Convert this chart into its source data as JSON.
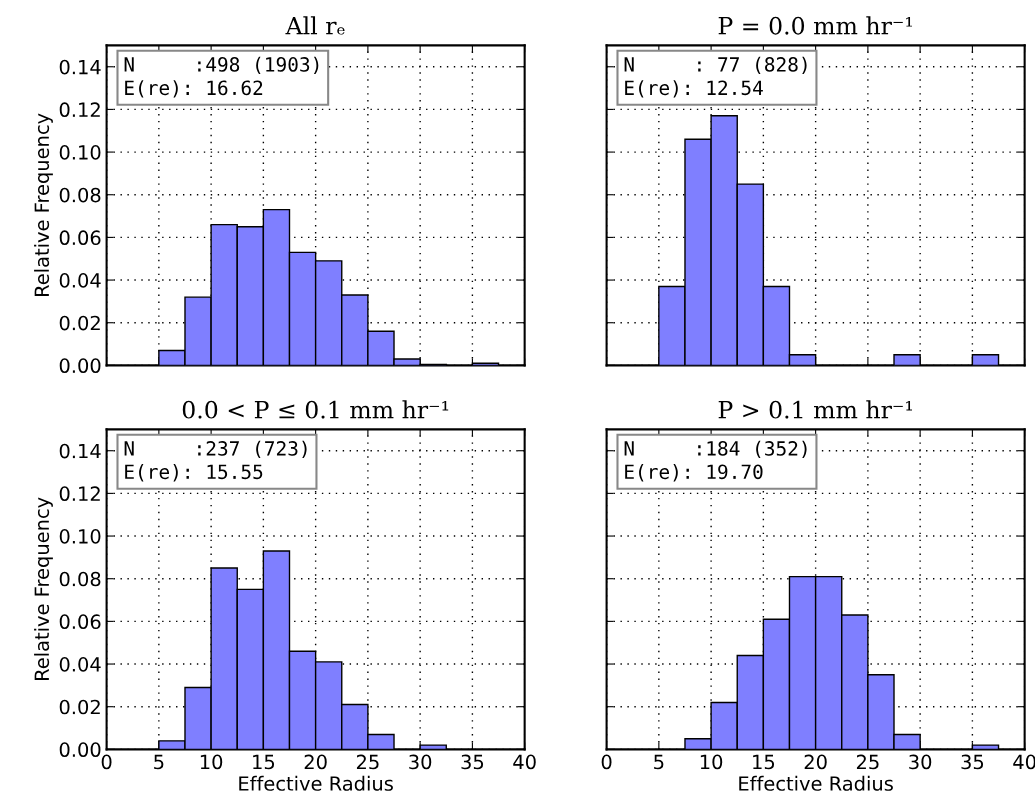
{
  "chart_data": [
    {
      "type": "histogram",
      "title": "All rₑ",
      "ylabel": "Relative Frequency",
      "annotations": [
        "N     :498 (1903)\nE(re): 16.62"
      ],
      "bins": [
        5,
        7.5,
        10,
        12.5,
        15,
        17.5,
        20,
        22.5,
        25,
        27.5,
        30,
        32.5,
        35,
        37.5
      ],
      "values": [
        0.007,
        0.032,
        0.066,
        0.065,
        0.073,
        0.053,
        0.049,
        0.033,
        0.016,
        0.003,
        0.0005,
        0,
        0.001
      ],
      "color": "#7f7fff",
      "xlim": [
        0,
        40
      ],
      "ylim": [
        0,
        0.15
      ],
      "xticks": [
        0,
        5,
        10,
        15,
        20,
        25,
        30,
        35,
        40
      ],
      "yticks": [
        {
          "value": 0,
          "label": "0.00"
        },
        {
          "value": 0.02,
          "label": "0.02"
        },
        {
          "value": 0.04,
          "label": "0.04"
        },
        {
          "value": 0.06,
          "label": "0.06"
        },
        {
          "value": 0.08,
          "label": "0.08"
        },
        {
          "value": 0.1,
          "label": "0.10"
        },
        {
          "value": 0.12,
          "label": "0.12"
        },
        {
          "value": 0.14,
          "label": "0.14"
        }
      ],
      "grid": true,
      "tick_labels": "y"
    },
    {
      "type": "histogram",
      "title": "P = 0.0 mm hr⁻¹",
      "annotations": [
        "N     : 77 (828)\nE(re): 12.54"
      ],
      "bins": [
        5,
        7.5,
        10,
        12.5,
        15,
        17.5,
        20,
        22.5,
        25,
        27.5,
        30,
        32.5,
        35,
        37.5
      ],
      "values": [
        0.037,
        0.106,
        0.117,
        0.085,
        0.037,
        0.005,
        0,
        0,
        0,
        0.005,
        0,
        0,
        0.005
      ],
      "color": "#7f7fff",
      "xlim": [
        0,
        40
      ],
      "ylim": [
        0,
        0.15
      ],
      "xticks": [
        0,
        5,
        10,
        15,
        20,
        25,
        30,
        35,
        40
      ],
      "yticks": [
        0,
        0.02,
        0.04,
        0.06,
        0.08,
        0.1,
        0.12,
        0.14
      ],
      "grid": true,
      "tick_labels": false
    },
    {
      "type": "histogram",
      "title": "0.0 < P ≤ 0.1 mm hr⁻¹",
      "xlabel": "Effective Radius",
      "ylabel": "Relative Frequency",
      "annotations": [
        "N     :237 (723)\nE(re): 15.55"
      ],
      "bins": [
        5,
        7.5,
        10,
        12.5,
        15,
        17.5,
        20,
        22.5,
        25,
        27.5,
        30,
        32.5,
        35,
        37.5
      ],
      "values": [
        0.004,
        0.029,
        0.085,
        0.075,
        0.093,
        0.046,
        0.041,
        0.021,
        0.007,
        0,
        0.002,
        0,
        0
      ],
      "color": "#7f7fff",
      "xlim": [
        0,
        40
      ],
      "ylim": [
        0,
        0.15
      ],
      "xticks": [
        0,
        5,
        10,
        15,
        20,
        25,
        30,
        35,
        40
      ],
      "yticks": [
        {
          "value": 0,
          "label": "0.00"
        },
        {
          "value": 0.02,
          "label": "0.02"
        },
        {
          "value": 0.04,
          "label": "0.04"
        },
        {
          "value": 0.06,
          "label": "0.06"
        },
        {
          "value": 0.08,
          "label": "0.08"
        },
        {
          "value": 0.1,
          "label": "0.10"
        },
        {
          "value": 0.12,
          "label": "0.12"
        },
        {
          "value": 0.14,
          "label": "0.14"
        }
      ],
      "grid": true
    },
    {
      "type": "histogram",
      "title": "P > 0.1 mm hr⁻¹",
      "xlabel": "Effective Radius",
      "annotations": [
        "N     :184 (352)\nE(re): 19.70"
      ],
      "bins": [
        5,
        7.5,
        10,
        12.5,
        15,
        17.5,
        20,
        22.5,
        25,
        27.5,
        30,
        32.5,
        35,
        37.5
      ],
      "values": [
        0,
        0.005,
        0.022,
        0.044,
        0.061,
        0.081,
        0.081,
        0.063,
        0.035,
        0.007,
        0,
        0,
        0.002
      ],
      "color": "#7f7fff",
      "xlim": [
        0,
        40
      ],
      "ylim": [
        0,
        0.15
      ],
      "xticks": [
        0,
        5,
        10,
        15,
        20,
        25,
        30,
        35,
        40
      ],
      "yticks": [
        0,
        0.02,
        0.04,
        0.06,
        0.08,
        0.1,
        0.12,
        0.14
      ],
      "grid": true,
      "tick_labels": "x"
    }
  ]
}
